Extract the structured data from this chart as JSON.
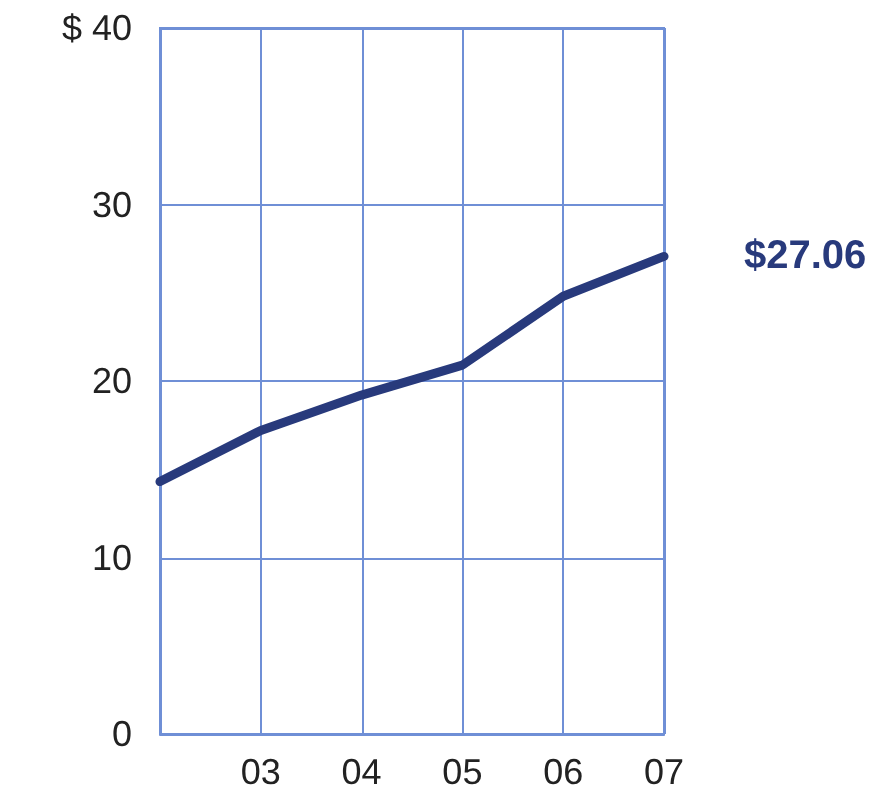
{
  "chart_data": {
    "type": "line",
    "categories": [
      null,
      "03",
      "04",
      "05",
      "06",
      "07"
    ],
    "series": [
      {
        "color": "#283a7c",
        "values": [
          14.3,
          17.2,
          19.2,
          20.9,
          24.8,
          27.06
        ]
      }
    ],
    "ylim": [
      0,
      40
    ],
    "yticks": [
      0,
      10,
      20,
      30,
      {
        "value": 40,
        "label": "$ 40"
      }
    ],
    "grid": true,
    "marker": "none",
    "line_style": "solid",
    "annotations": [
      {
        "text": "$27.06",
        "x": "07",
        "y": 27.06
      }
    ]
  }
}
